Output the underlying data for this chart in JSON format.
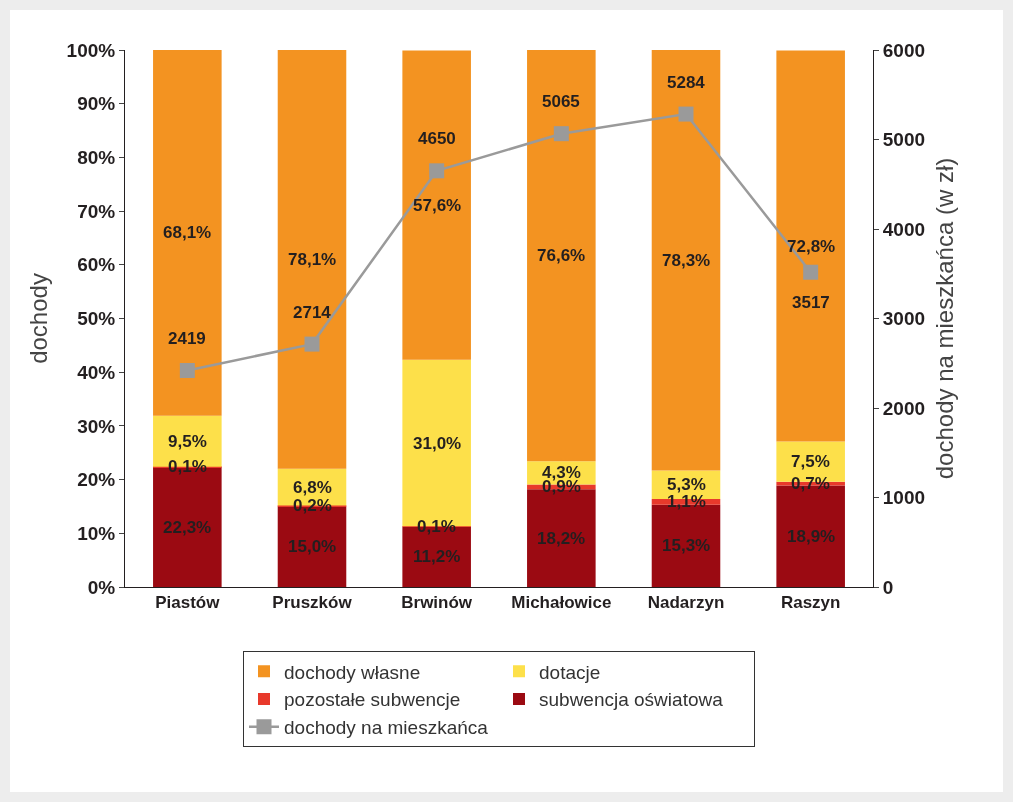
{
  "chart_data": {
    "type": "bar",
    "stacked": true,
    "ylabel": "dochody",
    "y2label": "dochody na mieszkańca (w zł)",
    "categories": [
      "Piastów",
      "Pruszków",
      "Brwinów",
      "Michałowice",
      "Nadarzyn",
      "Raszyn"
    ],
    "ylim": [
      0,
      100
    ],
    "yticks": [
      {
        "value": 0,
        "label": "0%"
      },
      {
        "value": 10,
        "label": "10%"
      },
      {
        "value": 20,
        "label": "20%"
      },
      {
        "value": 30,
        "label": "30%"
      },
      {
        "value": 40,
        "label": "40%"
      },
      {
        "value": 50,
        "label": "50%"
      },
      {
        "value": 60,
        "label": "60%"
      },
      {
        "value": 70,
        "label": "70%"
      },
      {
        "value": 80,
        "label": "80%"
      },
      {
        "value": 90,
        "label": "90%"
      },
      {
        "value": 100,
        "label": "100%"
      }
    ],
    "y2lim": [
      0,
      6000
    ],
    "y2ticks": [
      0,
      1000,
      2000,
      3000,
      4000,
      5000,
      6000
    ],
    "grid": false,
    "legend": "bottom",
    "series": [
      {
        "name": "subwencja oświatowa",
        "color": "#9b0a12",
        "values": [
          22.3,
          15.0,
          11.2,
          18.2,
          15.3,
          18.9
        ],
        "value_labels": [
          "22,3%",
          "15,0%",
          "11,2%",
          "18,2%",
          "15,3%",
          "18,9%"
        ]
      },
      {
        "name": "pozostałe subwencje",
        "color": "#e8392b",
        "values": [
          0.1,
          0.2,
          0.1,
          0.9,
          1.1,
          0.7
        ],
        "value_labels": [
          "0,1%",
          "0,2%",
          "0,1%",
          "0,9%",
          "1,1%",
          "0,7%"
        ]
      },
      {
        "name": "dotacje",
        "color": "#fde04a",
        "values": [
          9.5,
          6.8,
          31.0,
          4.3,
          5.3,
          7.5
        ],
        "value_labels": [
          "9,5%",
          "6,8%",
          "31,0%",
          "4,3%",
          "5,3%",
          "7,5%"
        ]
      },
      {
        "name": "dochody własne",
        "color": "#f39321",
        "values": [
          68.1,
          78.1,
          57.6,
          76.6,
          78.3,
          72.8
        ],
        "value_labels": [
          "68,1%",
          "78,1%",
          "57,6%",
          "76,6%",
          "78,3%",
          "72,8%"
        ]
      },
      {
        "name": "dochody na mieszkańca",
        "type": "line",
        "axis": "y2",
        "color": "#9a9a9a",
        "marker": "square",
        "line_style": "solid",
        "values": [
          2419,
          2714,
          4650,
          5065,
          5284,
          3517
        ],
        "value_labels": [
          "2419",
          "2714",
          "4650",
          "5065",
          "5284",
          "3517"
        ]
      }
    ]
  }
}
